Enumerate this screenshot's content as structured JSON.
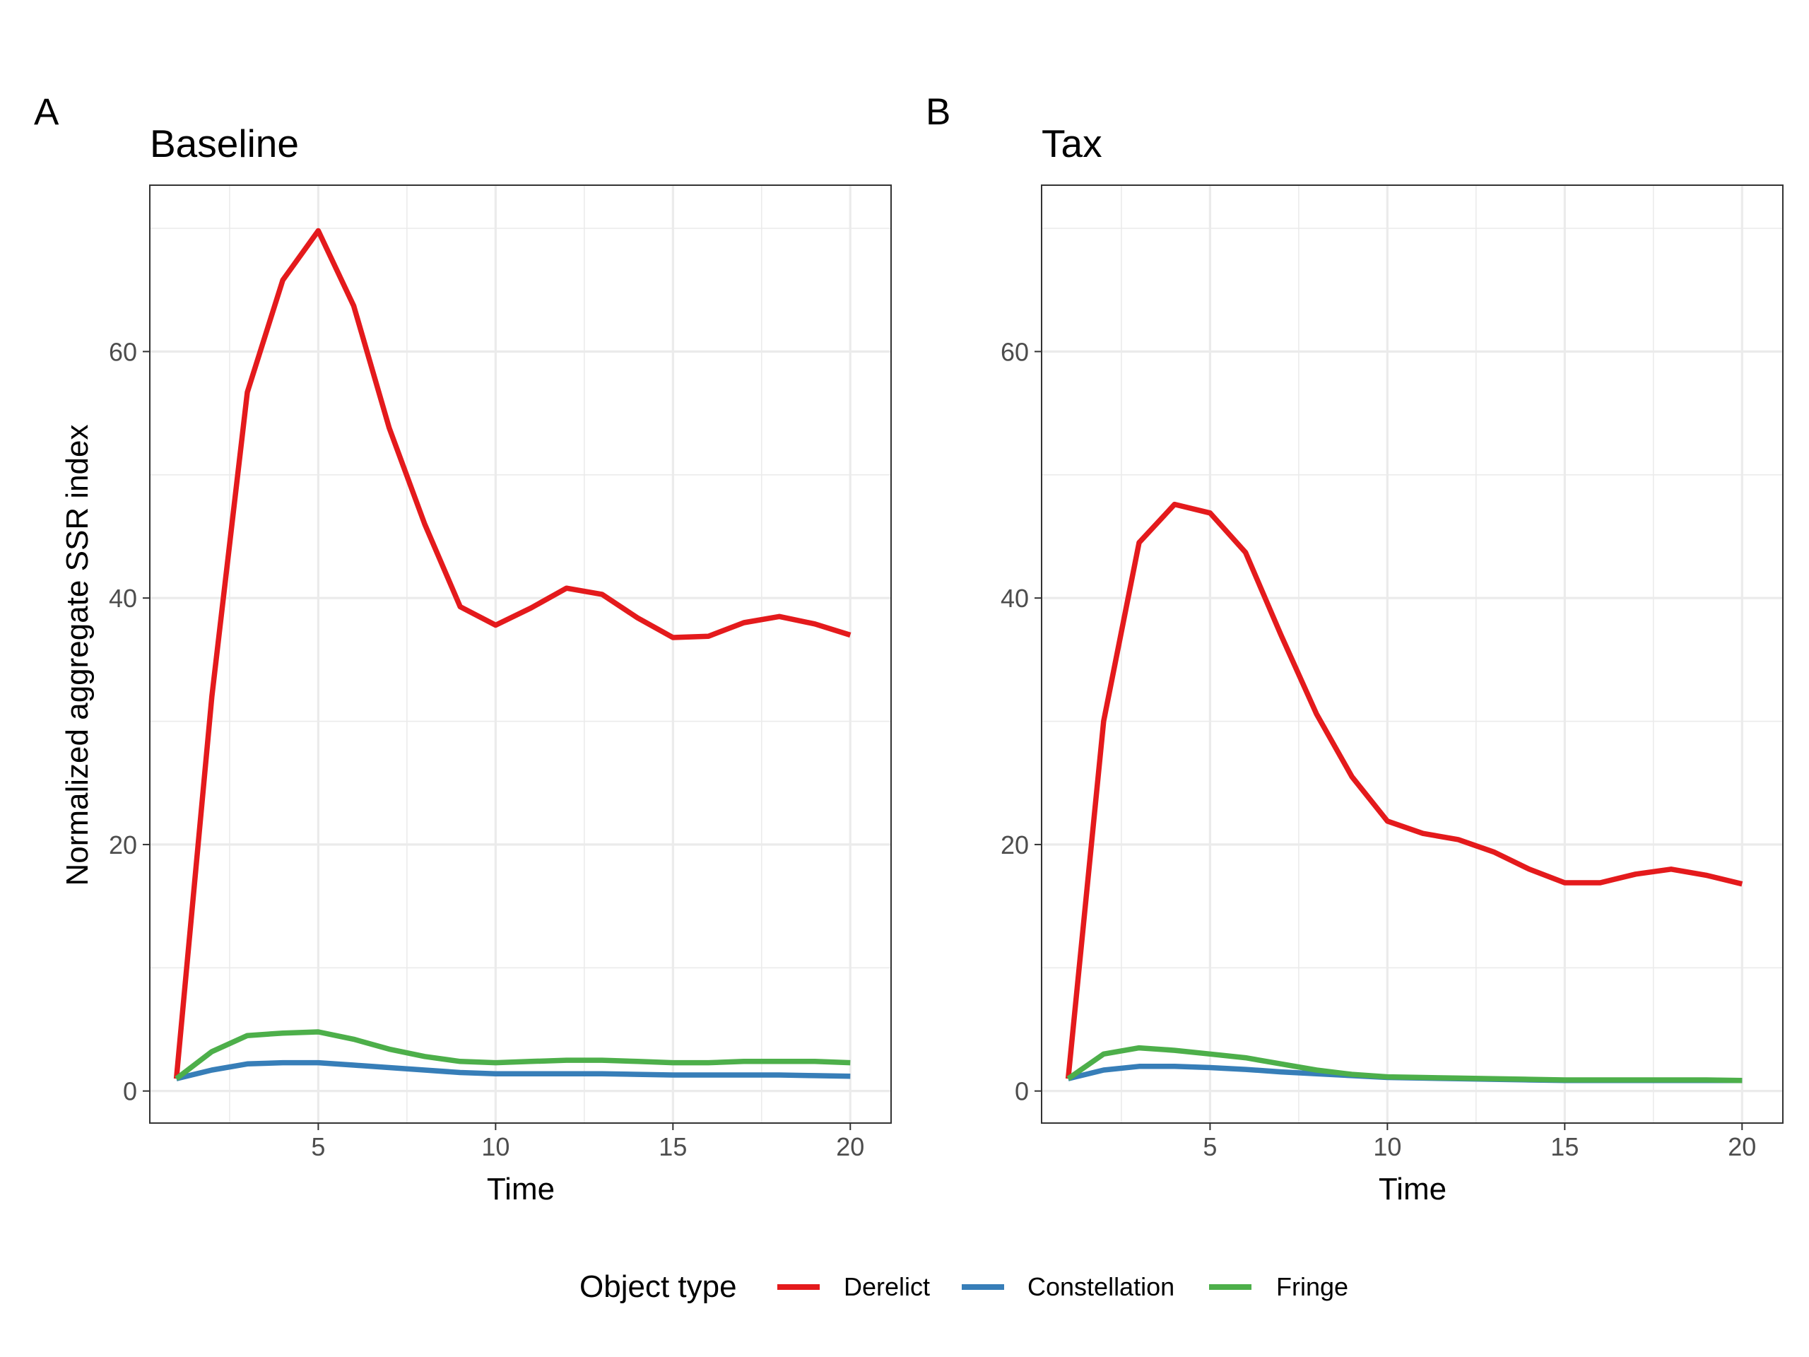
{
  "chart_data": [
    {
      "type": "line",
      "tag": "A",
      "title": "Baseline",
      "xlabel": "Time",
      "ylabel": "Normalized aggregate SSR index",
      "xlim": [
        0.25,
        21.15
      ],
      "ylim": [
        -2.6,
        73.5
      ],
      "xticks": [
        5,
        10,
        15,
        20
      ],
      "yticks": [
        0,
        20,
        40,
        60
      ],
      "x": [
        1,
        2,
        3,
        4,
        5,
        6,
        7,
        8,
        9,
        10,
        11,
        12,
        13,
        14,
        15,
        16,
        17,
        18,
        19,
        20
      ],
      "series": [
        {
          "name": "Derelict",
          "color": "#e41a1c",
          "values": [
            1.0,
            32.0,
            56.7,
            65.8,
            69.8,
            63.7,
            53.8,
            46.0,
            39.3,
            37.8,
            39.2,
            40.8,
            40.3,
            38.4,
            36.8,
            36.9,
            38.0,
            38.5,
            37.9,
            37.0
          ]
        },
        {
          "name": "Constellation",
          "color": "#377eb8",
          "values": [
            1.0,
            1.7,
            2.2,
            2.3,
            2.3,
            2.1,
            1.9,
            1.7,
            1.5,
            1.4,
            1.4,
            1.4,
            1.4,
            1.35,
            1.3,
            1.3,
            1.3,
            1.3,
            1.25,
            1.2
          ]
        },
        {
          "name": "Fringe",
          "color": "#4daf4a",
          "values": [
            1.0,
            3.2,
            4.5,
            4.7,
            4.8,
            4.2,
            3.4,
            2.8,
            2.4,
            2.3,
            2.4,
            2.5,
            2.5,
            2.4,
            2.3,
            2.3,
            2.4,
            2.4,
            2.4,
            2.3
          ]
        }
      ],
      "grid": true
    },
    {
      "type": "line",
      "tag": "B",
      "title": "Tax",
      "xlabel": "Time",
      "ylabel": "",
      "xlim": [
        0.25,
        21.15
      ],
      "ylim": [
        -2.6,
        73.5
      ],
      "xticks": [
        5,
        10,
        15,
        20
      ],
      "yticks": [
        0,
        20,
        40,
        60
      ],
      "x": [
        1,
        2,
        3,
        4,
        5,
        6,
        7,
        8,
        9,
        10,
        11,
        12,
        13,
        14,
        15,
        16,
        17,
        18,
        19,
        20
      ],
      "series": [
        {
          "name": "Derelict",
          "color": "#e41a1c",
          "values": [
            1.0,
            30.0,
            44.5,
            47.6,
            46.9,
            43.7,
            37.0,
            30.6,
            25.5,
            21.9,
            20.9,
            20.4,
            19.4,
            18.0,
            16.9,
            16.9,
            17.6,
            18.0,
            17.5,
            16.8
          ]
        },
        {
          "name": "Constellation",
          "color": "#377eb8",
          "values": [
            1.0,
            1.7,
            2.0,
            2.0,
            1.9,
            1.75,
            1.55,
            1.4,
            1.25,
            1.1,
            1.05,
            1.0,
            0.95,
            0.9,
            0.85,
            0.85,
            0.85,
            0.85,
            0.85,
            0.85
          ]
        },
        {
          "name": "Fringe",
          "color": "#4daf4a",
          "values": [
            1.0,
            3.0,
            3.5,
            3.3,
            3.0,
            2.7,
            2.2,
            1.7,
            1.35,
            1.15,
            1.1,
            1.05,
            1.0,
            0.95,
            0.9,
            0.9,
            0.9,
            0.9,
            0.9,
            0.85
          ]
        }
      ],
      "grid": true
    }
  ],
  "legend": {
    "title": "Object type",
    "placement": "bottom",
    "items": [
      {
        "label": "Derelict",
        "color": "#e41a1c"
      },
      {
        "label": "Constellation",
        "color": "#377eb8"
      },
      {
        "label": "Fringe",
        "color": "#4daf4a"
      }
    ]
  }
}
